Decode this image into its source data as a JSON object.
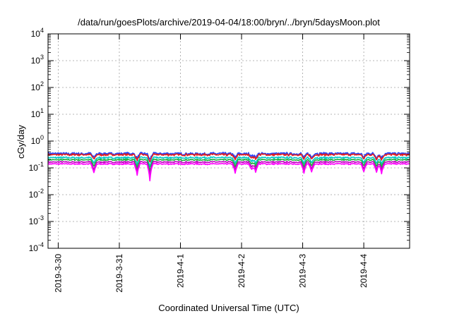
{
  "chart_data": {
    "type": "line",
    "title": "/data/run/goesPlots/archive/2019-04-04/18:00/bryn/../bryn/5daysMoon.plot",
    "xlabel": "Coordinated Universal Time (UTC)",
    "ylabel": "cGy/day",
    "yscale": "log",
    "ylim": [
      0.0001,
      10000
    ],
    "xlim": [
      "2019-03-29 20:00",
      "2019-04-04 18:00"
    ],
    "y_ticks": [
      {
        "mant": "10",
        "exp": "-4",
        "value": 0.0001
      },
      {
        "mant": "10",
        "exp": "-3",
        "value": 0.001
      },
      {
        "mant": "10",
        "exp": "-2",
        "value": 0.01
      },
      {
        "mant": "10",
        "exp": "-1",
        "value": 0.1
      },
      {
        "mant": "10",
        "exp": "0",
        "value": 1
      },
      {
        "mant": "10",
        "exp": "1",
        "value": 10
      },
      {
        "mant": "10",
        "exp": "2",
        "value": 100
      },
      {
        "mant": "10",
        "exp": "3",
        "value": 1000
      },
      {
        "mant": "10",
        "exp": "4",
        "value": 10000
      }
    ],
    "x_ticks": [
      "2019-3-30",
      "2019-3-31",
      "2019-4-1",
      "2019-4-2",
      "2019-4-3",
      "2019-4-4"
    ],
    "grid": true,
    "series": [
      {
        "color": "#2040ff",
        "baseline": 0.34,
        "noise": 0.12,
        "dip_scale": 0.45
      },
      {
        "color": "#e02020",
        "baseline": 0.31,
        "noise": 0.1,
        "dip_scale": 0.5
      },
      {
        "color": "#00c8c8",
        "baseline": 0.24,
        "noise": 0.08,
        "dip_scale": 0.55
      },
      {
        "color": "#20b040",
        "baseline": 0.2,
        "noise": 0.07,
        "dip_scale": 0.6
      },
      {
        "color": "#c000c0",
        "baseline": 0.165,
        "noise": 0.06,
        "dip_scale": 0.65
      },
      {
        "color": "#ff00ff",
        "baseline": 0.14,
        "noise": 0.06,
        "dip_scale": 0.7
      }
    ],
    "dips": [
      {
        "t": "2019-03-30 14:00",
        "depth": 0.5
      },
      {
        "t": "2019-03-31 07:00",
        "depth": 0.55
      },
      {
        "t": "2019-03-31 12:00",
        "depth": 0.7
      },
      {
        "t": "2019-04-01 21:30",
        "depth": 0.5
      },
      {
        "t": "2019-04-02 04:00",
        "depth": 0.35
      },
      {
        "t": "2019-04-02 05:30",
        "depth": 0.45
      },
      {
        "t": "2019-04-03 00:30",
        "depth": 0.5
      },
      {
        "t": "2019-04-03 03:30",
        "depth": 0.45
      },
      {
        "t": "2019-04-04 00:00",
        "depth": 0.45
      },
      {
        "t": "2019-04-04 05:00",
        "depth": 0.45
      },
      {
        "t": "2019-04-04 07:00",
        "depth": 0.5
      }
    ]
  }
}
